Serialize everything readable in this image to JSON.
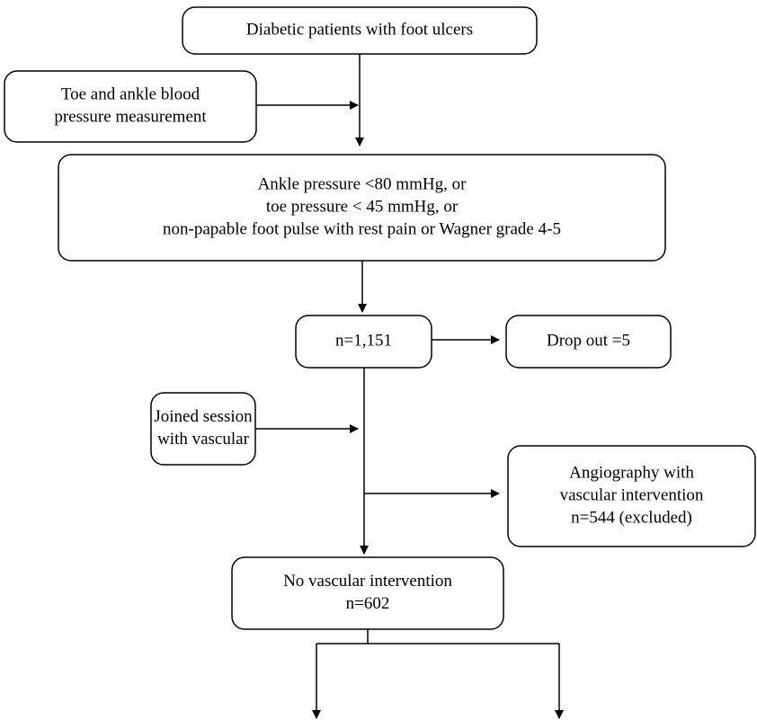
{
  "nodes": [
    {
      "lines": [
        "Diabetic patients with foot ulcers"
      ]
    },
    {
      "lines": [
        "Toe and ankle blood",
        "pressure measurement"
      ]
    },
    {
      "lines": [
        "Ankle pressure <80 mmHg, or",
        "toe pressure < 45 mmHg, or",
        "non-papable foot pulse with rest pain or Wagner grade 4-5"
      ]
    },
    {
      "lines": [
        "n=1,151"
      ]
    },
    {
      "lines": [
        "Drop out =5"
      ]
    },
    {
      "lines": [
        "Joined session",
        "with vascular"
      ]
    },
    {
      "lines": [
        "Angiography with",
        "vascular intervention",
        "n=544 (excluded)"
      ]
    },
    {
      "lines": [
        "No vascular intervention",
        "n=602"
      ]
    }
  ]
}
